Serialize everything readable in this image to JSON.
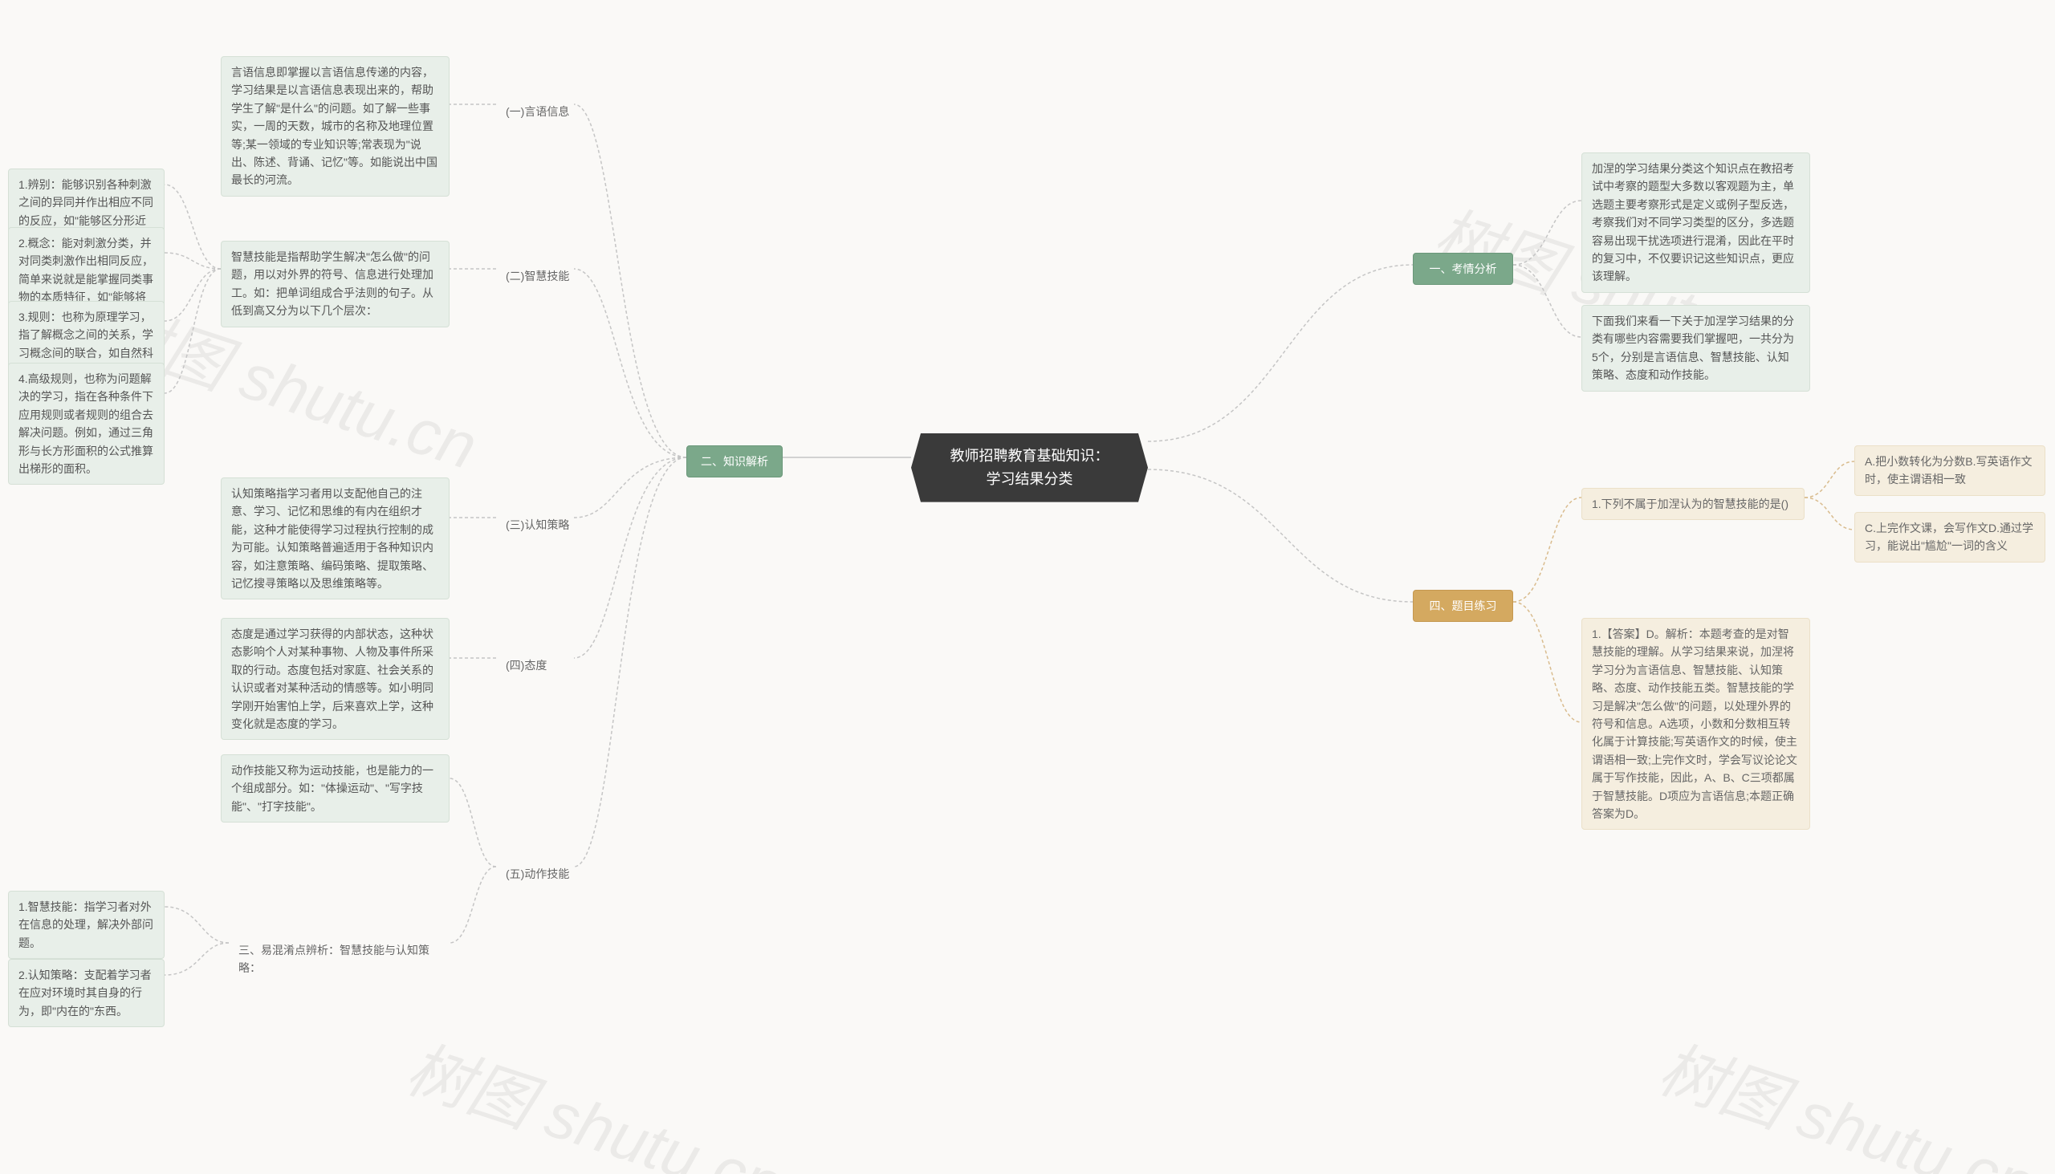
{
  "root": {
    "title": "教师招聘教育基础知识：\n学习结果分类"
  },
  "left": {
    "main": {
      "label": "二、知识解析"
    },
    "items": [
      {
        "label": "(一)言语信息",
        "desc": "言语信息即掌握以言语信息传递的内容，学习结果是以言语信息表现出来的，帮助学生了解\"是什么\"的问题。如了解一些事实，一周的天数，城市的名称及地理位置等;某一领域的专业知识等;常表现为\"说出、陈述、背诵、记忆\"等。如能说出中国最长的河流。"
      },
      {
        "label": "(二)智慧技能",
        "desc": "智慧技能是指帮助学生解决\"怎么做\"的问题，用以对外界的符号、信息进行处理加工。如：把单词组成合乎法则的句子。从低到高又分为以下几个层次：",
        "sub": [
          "1.辨别：能够识别各种刺激之间的异同并作出相应不同的反应，如\"能够区分形近字。\"",
          "2.概念：能对刺激分类，并对同类刺激作出相同反应，简单来说就是能掌握同类事物的本质特征，如\"能够将花、草、树木归纳为植物。\"",
          "3.规则：也称为原理学习，指了解概念之间的关系，学习概念间的联合，如自然科学中的各种定律、定理的学习就是规则学习。",
          "4.高级规则，也称为问题解决的学习，指在各种条件下应用规则或者规则的组合去解决问题。例如，通过三角形与长方形面积的公式推算出梯形的面积。"
        ]
      },
      {
        "label": "(三)认知策略",
        "desc": "认知策略指学习者用以支配他自己的注意、学习、记忆和思维的有内在组织才能，这种才能使得学习过程执行控制的成为可能。认知策略普遍适用于各种知识内容，如注意策略、编码策略、提取策略、记忆搜寻策略以及思维策略等。"
      },
      {
        "label": "(四)态度",
        "desc": "态度是通过学习获得的内部状态，这种状态影响个人对某种事物、人物及事件所采取的行动。态度包括对家庭、社会关系的认识或者对某种活动的情感等。如小明同学刚开始害怕上学，后来喜欢上学，这种变化就是态度的学习。"
      },
      {
        "label": "(五)动作技能",
        "desc": "动作技能又称为运动技能，也是能力的一个组成部分。如：\"体操运动\"、\"写字技能\"、\"打字技能\"。",
        "mix": {
          "label": "三、易混淆点辨析：智慧技能与认知策略：",
          "sub": [
            "1.智慧技能：指学习者对外在信息的处理，解决外部问题。",
            "2.认知策略：支配着学习者在应对环境时其自身的行为，即\"内在的\"东西。"
          ]
        }
      }
    ]
  },
  "right": {
    "branch1": {
      "label": "一、考情分析",
      "desc1": "加涅的学习结果分类这个知识点在教招考试中考察的题型大多数以客观题为主，单选题主要考察形式是定义或例子型反选，考察我们对不同学习类型的区分，多选题容易出现干扰选项进行混淆，因此在平时的复习中，不仅要识记这些知识点，更应该理解。",
      "desc2": "下面我们来看一下关于加涅学习结果的分类有哪些内容需要我们掌握吧，一共分为5个，分别是言语信息、智慧技能、认知策略、态度和动作技能。"
    },
    "branch4": {
      "label": "四、题目练习",
      "q": {
        "stem": "1.下列不属于加涅认为的智慧技能的是()",
        "optA": "A.把小数转化为分数B.写英语作文时，使主谓语相一致",
        "optC": "C.上完作文课，会写作文D.通过学习，能说出\"尴尬\"一词的含义"
      },
      "ans": "1.【答案】D。解析：本题考查的是对智慧技能的理解。从学习结果来说，加涅将学习分为言语信息、智慧技能、认知策略、态度、动作技能五类。智慧技能的学习是解决\"怎么做\"的问题，以处理外界的符号和信息。A选项，小数和分数相互转化属于计算技能;写英语作文的时候，使主谓语相一致;上完作文时，学会写议论论文属于写作技能，因此，A、B、C三项都属于智慧技能。D项应为言语信息;本题正确答案为D。"
    }
  },
  "colors": {
    "bg": "#faf9f7",
    "root_bg": "#3a3a3a",
    "green_solid": "#7ba88a",
    "green_light": "#e8efe9",
    "orange_solid": "#d4a960",
    "orange_light": "#f5eedf",
    "connector": "#c5c5c5",
    "connector_orange": "#d9bc8e",
    "watermark": "rgba(0,0,0,0.06)"
  },
  "watermark_text": "树图 shutu.cn"
}
